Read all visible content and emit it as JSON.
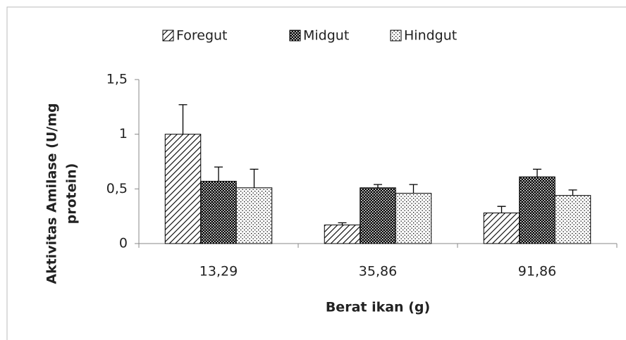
{
  "chart_data": {
    "type": "bar",
    "x_label": "Berat ikan  (g)",
    "y_label": [
      "Aktivitas Amilase  (U/mg",
      "protein)"
    ],
    "categories": [
      "13,29",
      "35,86",
      "91,86"
    ],
    "series": [
      {
        "name": "Foregut",
        "color": "#000000",
        "values": [
          1.0,
          0.17,
          0.28
        ],
        "errors": [
          0.27,
          0.02,
          0.06
        ]
      },
      {
        "name": "Midgut",
        "color": "#000000",
        "values": [
          0.57,
          0.51,
          0.61
        ],
        "errors": [
          0.13,
          0.03,
          0.07
        ]
      },
      {
        "name": "Hindgut",
        "color": "#000000",
        "values": [
          0.51,
          0.46,
          0.44
        ],
        "errors": [
          0.17,
          0.08,
          0.05
        ]
      }
    ],
    "ylim": [
      0,
      1.5
    ],
    "yticks": [
      0,
      {
        "value": 0.5,
        "label": "0,5"
      },
      1,
      {
        "value": 1.5,
        "label": "1,5"
      }
    ],
    "legend": "top"
  }
}
